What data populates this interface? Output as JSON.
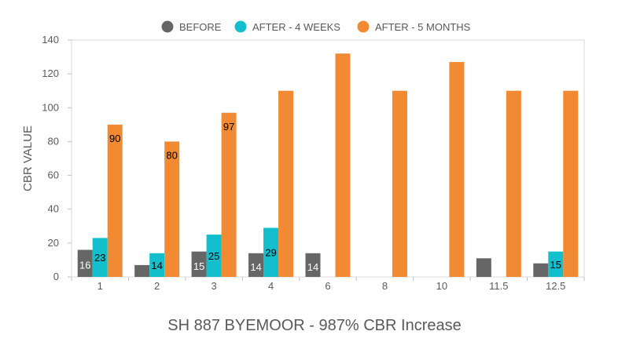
{
  "chart_data": {
    "type": "bar",
    "title": "SH 887 BYEMOOR - 987% CBR Increase",
    "xlabel": "",
    "ylabel": "CBR VALUE",
    "ylim": [
      0,
      140
    ],
    "yticks": [
      0,
      20,
      40,
      60,
      80,
      100,
      120,
      140
    ],
    "grid": false,
    "legend_position": "top",
    "categories": [
      "1",
      "2",
      "3",
      "4",
      "6",
      "8",
      "10",
      "11.5",
      "12.5"
    ],
    "series": [
      {
        "name": "BEFORE",
        "color": "#666666",
        "values": [
          16,
          7,
          15,
          14,
          14,
          null,
          null,
          11,
          8
        ],
        "labels": [
          "16",
          null,
          "15",
          "14",
          "14",
          null,
          null,
          null,
          null
        ]
      },
      {
        "name": "AFTER - 4 WEEKS",
        "color": "#13bfcc",
        "values": [
          23,
          14,
          25,
          29,
          null,
          null,
          null,
          null,
          15
        ],
        "labels": [
          "23",
          "14",
          "25",
          "29",
          null,
          null,
          null,
          null,
          "15"
        ]
      },
      {
        "name": "AFTER - 5 MONTHS",
        "color": "#f28a33",
        "values": [
          90,
          80,
          97,
          110,
          132,
          110,
          127,
          110,
          110
        ],
        "labels": [
          "90",
          "80",
          "97",
          null,
          null,
          null,
          null,
          null,
          null
        ]
      }
    ]
  }
}
